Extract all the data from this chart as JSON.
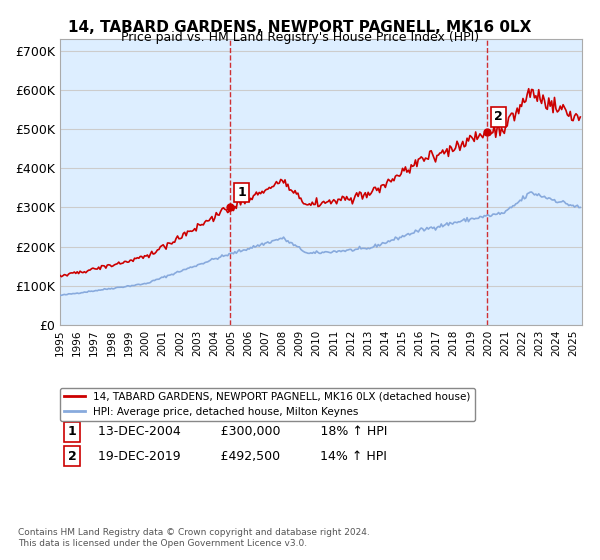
{
  "title": "14, TABARD GARDENS, NEWPORT PAGNELL, MK16 0LX",
  "subtitle": "Price paid vs. HM Land Registry's House Price Index (HPI)",
  "ylabel_ticks": [
    "£0",
    "£100K",
    "£200K",
    "£300K",
    "£400K",
    "£500K",
    "£600K",
    "£700K"
  ],
  "ylim": [
    0,
    730000
  ],
  "yticks": [
    0,
    100000,
    200000,
    300000,
    400000,
    500000,
    600000,
    700000
  ],
  "xlim_start": 1995.0,
  "xlim_end": 2025.5,
  "sale1_x": 2004.96,
  "sale1_y": 300000,
  "sale1_label": "1",
  "sale2_x": 2019.96,
  "sale2_y": 492500,
  "sale2_label": "2",
  "line_color_property": "#cc0000",
  "line_color_hpi": "#88aadd",
  "vline_color": "#cc0000",
  "grid_color": "#cccccc",
  "bg_color": "#ddeeff",
  "legend_label_property": "14, TABARD GARDENS, NEWPORT PAGNELL, MK16 0LX (detached house)",
  "legend_label_hpi": "HPI: Average price, detached house, Milton Keynes",
  "annotation1_date": "13-DEC-2004",
  "annotation1_price": "£300,000",
  "annotation1_hpi": "18% ↑ HPI",
  "annotation2_date": "19-DEC-2019",
  "annotation2_price": "£492,500",
  "annotation2_hpi": "14% ↑ HPI",
  "footnote": "Contains HM Land Registry data © Crown copyright and database right 2024.\nThis data is licensed under the Open Government Licence v3.0."
}
